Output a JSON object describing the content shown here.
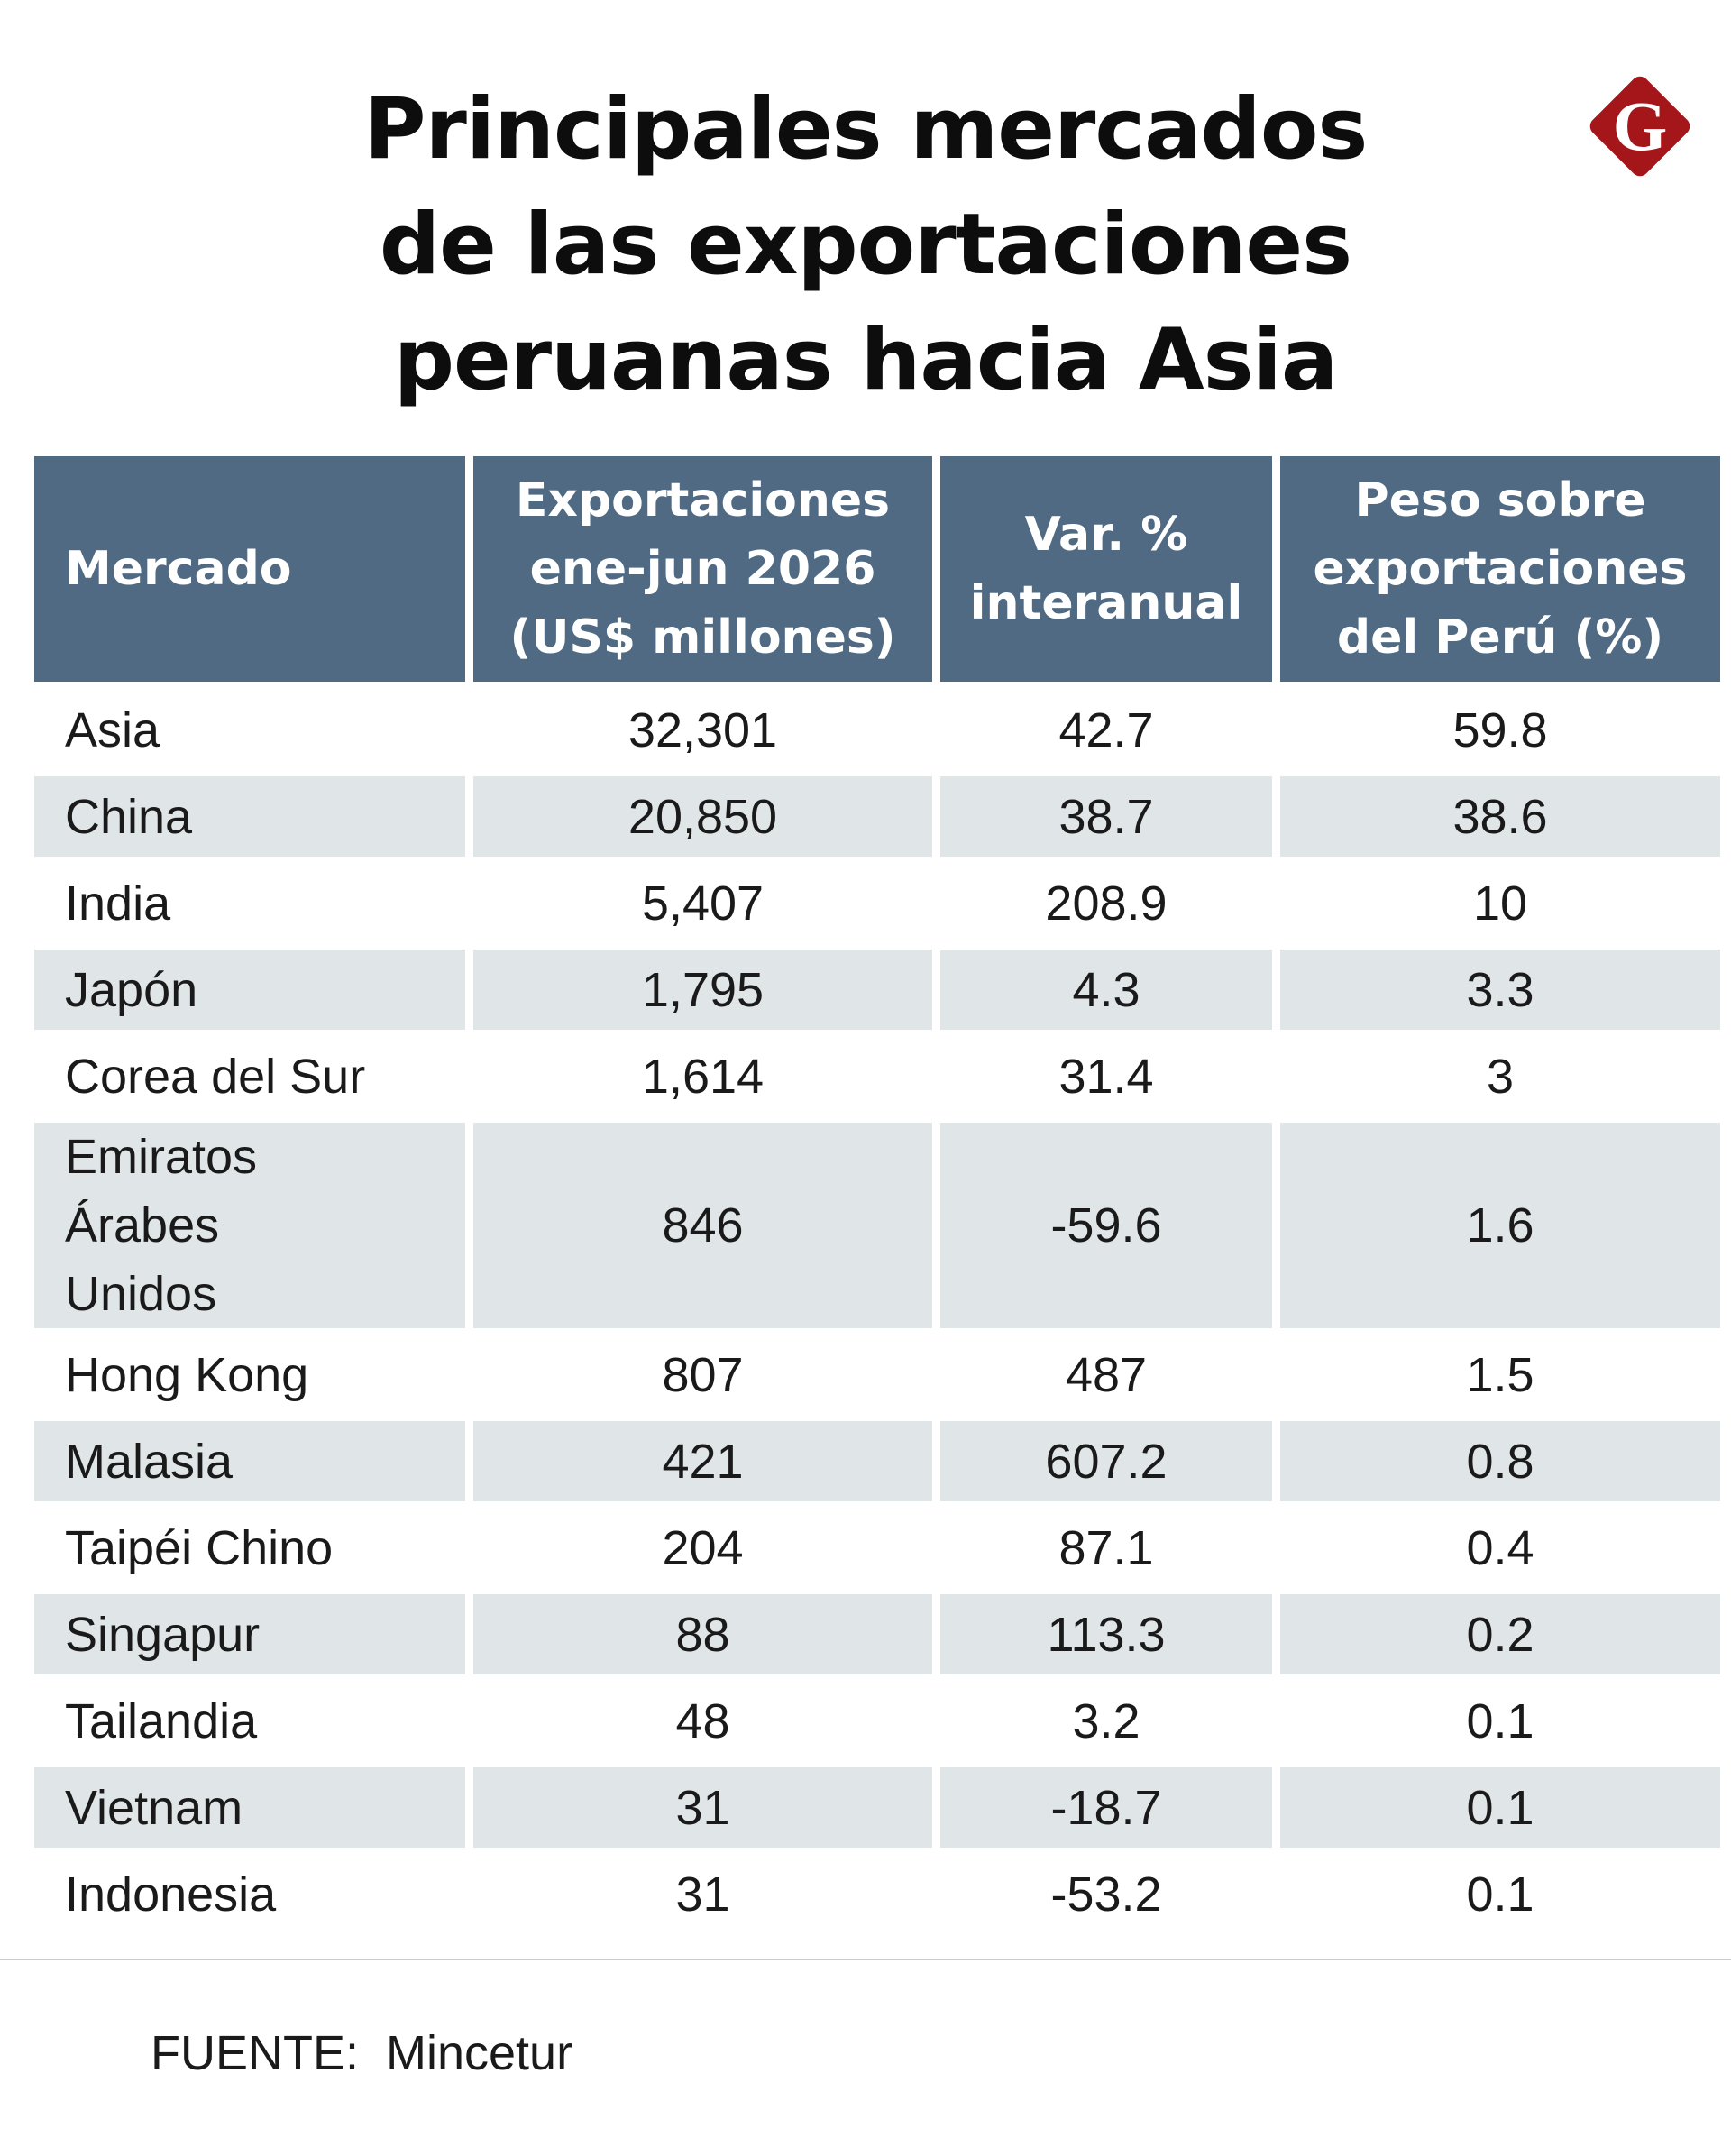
{
  "brand": {
    "logo_letter": "G",
    "logo_color": "#a4161a",
    "header_color": "#4f6a82",
    "row_shade_color": "#e0e5e8"
  },
  "chart_data": {
    "type": "table",
    "title": [
      "Principales mercados",
      "de las exportaciones",
      "peruanas hacia Asia"
    ],
    "columns": [
      {
        "lines": [
          "Mercado"
        ]
      },
      {
        "lines": [
          "Exportaciones",
          "ene-jun 2026",
          "(US$ millones)"
        ]
      },
      {
        "lines": [
          "Var. %",
          "interanual"
        ]
      },
      {
        "lines": [
          "Peso sobre",
          "exportaciones",
          "del Perú (%)"
        ]
      }
    ],
    "rows": [
      {
        "mercado": "Asia",
        "exportaciones": "32,301",
        "variacion": "42.7",
        "peso": "59.8"
      },
      {
        "mercado": "China",
        "exportaciones": "20,850",
        "variacion": "38.7",
        "peso": "38.6"
      },
      {
        "mercado": "India",
        "exportaciones": "5,407",
        "variacion": "208.9",
        "peso": "10"
      },
      {
        "mercado": "Japón",
        "exportaciones": "1,795",
        "variacion": "4.3",
        "peso": "3.3"
      },
      {
        "mercado": "Corea del Sur",
        "exportaciones": "1,614",
        "variacion": "31.4",
        "peso": "3"
      },
      {
        "mercado": "Emiratos Árabes Unidos",
        "exportaciones": "846",
        "variacion": "-59.6",
        "peso": "1.6"
      },
      {
        "mercado": "Hong Kong",
        "exportaciones": "807",
        "variacion": "487",
        "peso": "1.5"
      },
      {
        "mercado": "Malasia",
        "exportaciones": "421",
        "variacion": "607.2",
        "peso": "0.8"
      },
      {
        "mercado": "Taipéi Chino",
        "exportaciones": "204",
        "variacion": "87.1",
        "peso": "0.4"
      },
      {
        "mercado": "Singapur",
        "exportaciones": "88",
        "variacion": "113.3",
        "peso": "0.2"
      },
      {
        "mercado": "Tailandia",
        "exportaciones": "48",
        "variacion": "3.2",
        "peso": "0.1"
      },
      {
        "mercado": "Vietnam",
        "exportaciones": "31",
        "variacion": "-18.7",
        "peso": "0.1"
      },
      {
        "mercado": "Indonesia",
        "exportaciones": "31",
        "variacion": "-53.2",
        "peso": "0.1"
      }
    ],
    "source": "FUENTE:  Mincetur"
  }
}
